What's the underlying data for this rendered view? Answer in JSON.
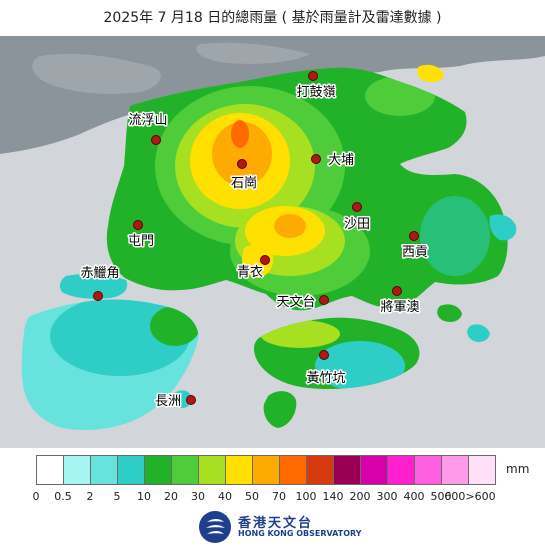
{
  "title": "2025年 7 月18 日的總雨量 ( 基於雨量計及雷達數據 )",
  "stations": [
    {
      "name": "打鼓嶺"
    },
    {
      "name": "流浮山"
    },
    {
      "name": "大埔"
    },
    {
      "name": "石崗"
    },
    {
      "name": "沙田"
    },
    {
      "name": "屯門"
    },
    {
      "name": "西貢"
    },
    {
      "name": "青衣"
    },
    {
      "name": "赤鱲角"
    },
    {
      "name": "天文台"
    },
    {
      "name": "將軍澳"
    },
    {
      "name": "黃竹坑"
    },
    {
      "name": "長洲"
    }
  ],
  "legend": {
    "unit": "mm",
    "colors": [
      "#ffffff",
      "#a6f5f3",
      "#67e2dd",
      "#2ecec6",
      "#22b22a",
      "#4ecc3a",
      "#a6e020",
      "#ffe000",
      "#ffaa00",
      "#ff6a00",
      "#d83a10",
      "#990055",
      "#d800a8",
      "#ff20d0",
      "#ff60e0",
      "#ff9ae8",
      "#ffe0f8"
    ],
    "ticks": [
      "0",
      "0.5",
      "2",
      "5",
      "10",
      "20",
      "30",
      "40",
      "50",
      "70",
      "100",
      "140",
      "200",
      "300",
      "400",
      "500",
      "600>600"
    ]
  },
  "logo": {
    "name_cn": "香港天文台",
    "name_en": "HONG KONG OBSERVATORY"
  },
  "colors": {
    "sea": "#d2d6da",
    "land_mainland": "#8b949a",
    "marker": "#b01818"
  }
}
